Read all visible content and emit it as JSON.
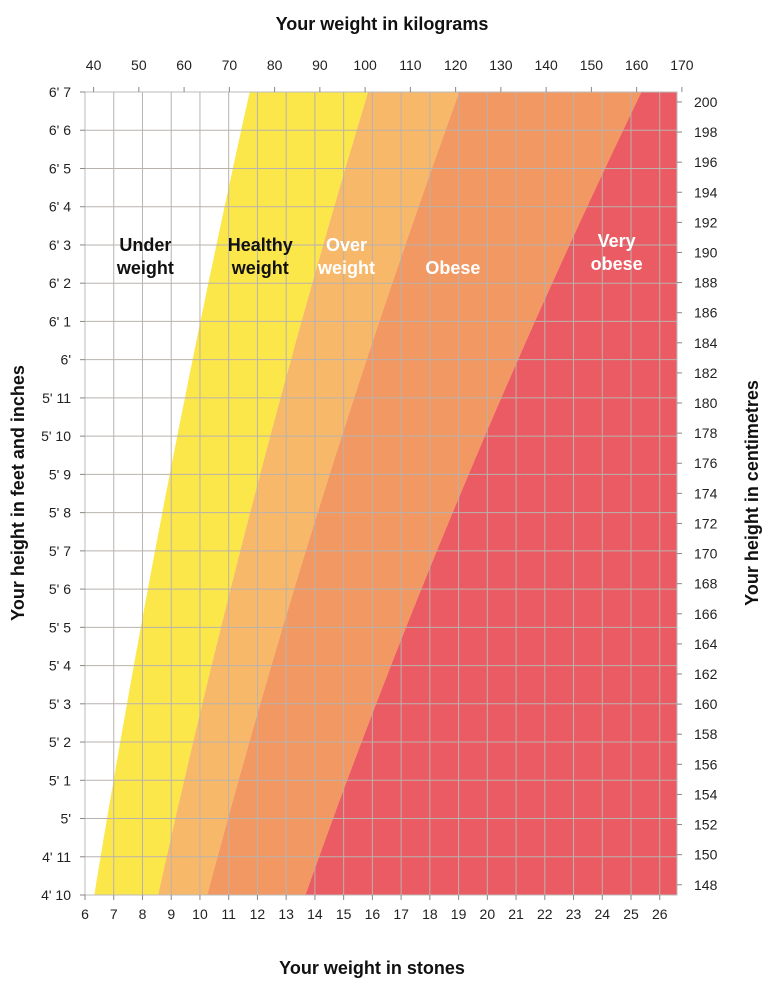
{
  "chart_data": {
    "type": "area",
    "title_top": "Your weight in kilograms",
    "title_bottom": "Your weight in stones",
    "title_left": "Your height in feet and inches",
    "title_right": "Your height in centimetres",
    "x_stones": {
      "range": [
        6,
        26.6
      ],
      "ticks": [
        6,
        7,
        8,
        9,
        10,
        11,
        12,
        13,
        14,
        15,
        16,
        17,
        18,
        19,
        20,
        21,
        22,
        23,
        24,
        25,
        26
      ]
    },
    "x_kg": {
      "range": [
        38.1,
        168.9
      ],
      "ticks": [
        40,
        50,
        60,
        70,
        80,
        90,
        100,
        110,
        120,
        130,
        140,
        150,
        160,
        170
      ]
    },
    "y_feet_inches": {
      "ticks": [
        {
          "label": "4' 10",
          "inches": 58
        },
        {
          "label": "4' 11",
          "inches": 59
        },
        {
          "label": "5'",
          "inches": 60
        },
        {
          "label": "5' 1",
          "inches": 61
        },
        {
          "label": "5' 2",
          "inches": 62
        },
        {
          "label": "5' 3",
          "inches": 63
        },
        {
          "label": "5' 4",
          "inches": 64
        },
        {
          "label": "5' 5",
          "inches": 65
        },
        {
          "label": "5' 6",
          "inches": 66
        },
        {
          "label": "5' 7",
          "inches": 67
        },
        {
          "label": "5' 8",
          "inches": 68
        },
        {
          "label": "5' 9",
          "inches": 69
        },
        {
          "label": "5' 10",
          "inches": 70
        },
        {
          "label": "5' 11",
          "inches": 71
        },
        {
          "label": "6'",
          "inches": 72
        },
        {
          "label": "6' 1",
          "inches": 73
        },
        {
          "label": "6' 2",
          "inches": 74
        },
        {
          "label": "6' 3",
          "inches": 75
        },
        {
          "label": "6' 4",
          "inches": 76
        },
        {
          "label": "6' 5",
          "inches": 77
        },
        {
          "label": "6' 6",
          "inches": 78
        },
        {
          "label": "6' 7",
          "inches": 79
        }
      ]
    },
    "y_cm": {
      "ticks": [
        148,
        150,
        152,
        154,
        156,
        158,
        160,
        162,
        164,
        166,
        168,
        170,
        172,
        174,
        176,
        178,
        180,
        182,
        184,
        186,
        188,
        190,
        192,
        194,
        196,
        198,
        200
      ]
    },
    "zones": [
      {
        "name": "Underweight",
        "label_lines": [
          "Under",
          "weight"
        ],
        "bmi_upper": 18.5,
        "color": "#ffffff",
        "text_color": "#111111"
      },
      {
        "name": "Healthy weight",
        "label_lines": [
          "Healthy",
          "weight"
        ],
        "bmi_upper": 25,
        "color": "#fce74a",
        "text_color": "#111111"
      },
      {
        "name": "Overweight",
        "label_lines": [
          "Over",
          "weight"
        ],
        "bmi_upper": 30,
        "color": "#f8b86a",
        "text_color": "#ffffff"
      },
      {
        "name": "Obese",
        "label_lines": [
          "Obese"
        ],
        "bmi_upper": 40,
        "color": "#f29863",
        "text_color": "#ffffff"
      },
      {
        "name": "Very obese",
        "label_lines": [
          "Very",
          "obese"
        ],
        "bmi_upper": null,
        "color": "#ea5b63",
        "text_color": "#ffffff"
      }
    ],
    "label_position_stones": [
      8.1,
      12.1,
      15.1,
      18.8,
      24.5
    ],
    "label_position_inches": [
      74.7,
      74.7,
      74.7,
      74.4,
      74.8
    ],
    "grid": true
  }
}
